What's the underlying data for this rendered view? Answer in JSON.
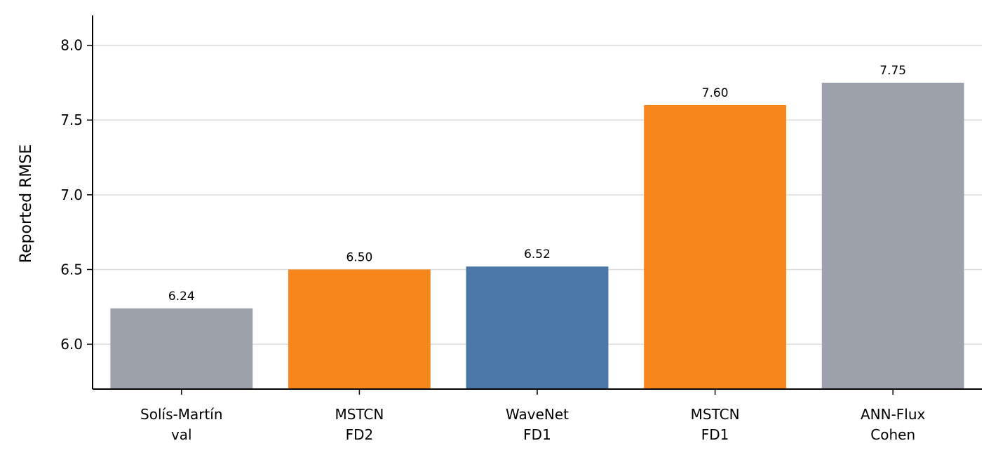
{
  "chart_data": {
    "type": "bar",
    "categories": [
      [
        "Solís-Martín",
        "val"
      ],
      [
        "MSTCN",
        "FD2"
      ],
      [
        "WaveNet",
        "FD1"
      ],
      [
        "MSTCN",
        "FD1"
      ],
      [
        "ANN-Flux",
        "Cohen"
      ]
    ],
    "values": [
      6.24,
      6.5,
      6.52,
      7.6,
      7.75
    ],
    "data_labels": [
      "6.24",
      "6.50",
      "6.52",
      "7.60",
      "7.75"
    ],
    "bar_colors": [
      "#9ca1ab",
      "#f5871c",
      "#4c78a8",
      "#f5871c",
      "#9ca1ab"
    ],
    "title": "",
    "xlabel": "",
    "ylabel": "Reported RMSE",
    "ylim": [
      5.7,
      8.2
    ],
    "yticks": [
      6.0,
      6.5,
      7.0,
      7.5,
      8.0
    ],
    "ytick_labels": [
      "6.0",
      "6.5",
      "7.0",
      "7.5",
      "8.0"
    ],
    "grid": "horizontal",
    "legend": "none"
  }
}
